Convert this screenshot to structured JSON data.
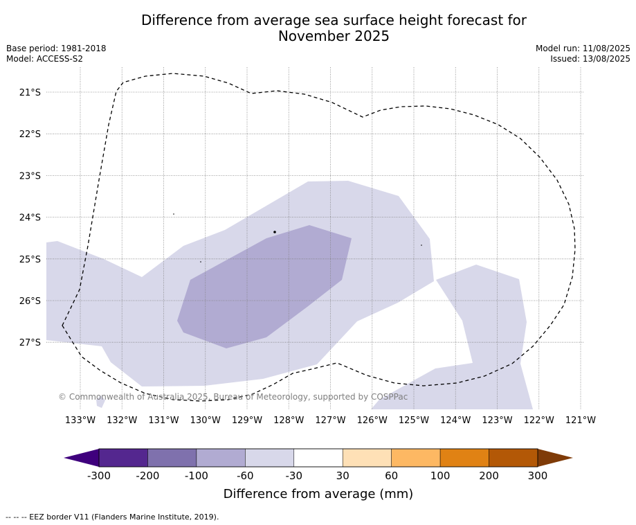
{
  "header": {
    "title_line1": "Difference from average sea surface height forecast for",
    "title_line2": "November 2025",
    "base_period": "Base period: 1981-2018",
    "model": "Model: ACCESS-S2",
    "model_run": "Model run: 11/08/2025",
    "issued": "Issued: 13/08/2025"
  },
  "map": {
    "lat_labels": [
      "21°S",
      "22°S",
      "23°S",
      "24°S",
      "25°S",
      "26°S",
      "27°S"
    ],
    "lon_labels": [
      "133°W",
      "132°W",
      "131°W",
      "130°W",
      "129°W",
      "128°W",
      "127°W",
      "126°W",
      "125°W",
      "124°W",
      "123°W",
      "122°W",
      "121°W"
    ],
    "copyright": "© Commonwealth of Australia 2025, Bureau of Meteorology, supported by COSPPac",
    "colors": {
      "minus_60_30": "#d8d8ea",
      "minus_100_60": "#b1abd2",
      "border": "#000000"
    }
  },
  "colorbar": {
    "ticks": [
      "-300",
      "-200",
      "-100",
      "-60",
      "-30",
      "30",
      "60",
      "100",
      "200",
      "300"
    ],
    "colors": [
      "#3f007d",
      "#54278f",
      "#7f71ad",
      "#b1abd2",
      "#d8d8ea",
      "#ffffff",
      "#fee0b6",
      "#fdb863",
      "#e08214",
      "#b35806",
      "#7f3b08"
    ],
    "title": "Difference from average (mm)"
  },
  "footnote": "--  --  -- EEZ border V11 (Flanders Marine Institute, 2019)."
}
